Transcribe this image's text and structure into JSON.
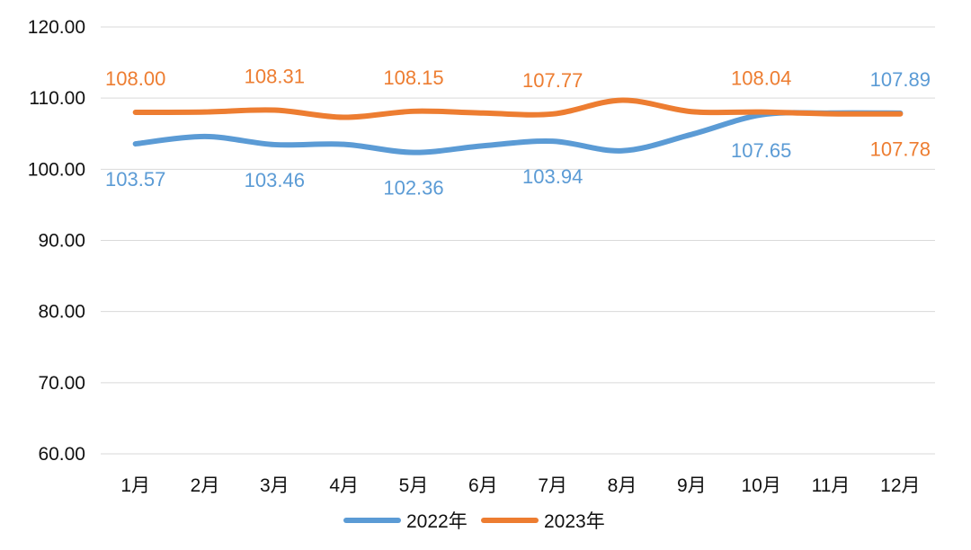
{
  "chart_data": {
    "type": "line",
    "categories": [
      "1月",
      "2月",
      "3月",
      "4月",
      "5月",
      "6月",
      "7月",
      "8月",
      "9月",
      "10月",
      "11月",
      "12月"
    ],
    "series": [
      {
        "name": "2022年",
        "color": "#5B9BD5",
        "values": [
          103.57,
          104.6,
          103.46,
          103.5,
          102.36,
          103.3,
          103.94,
          102.6,
          104.9,
          107.65,
          107.9,
          107.89
        ],
        "labels": [
          {
            "index": 0,
            "text": "103.57",
            "pos": "below"
          },
          {
            "index": 2,
            "text": "103.46",
            "pos": "below"
          },
          {
            "index": 4,
            "text": "102.36",
            "pos": "below"
          },
          {
            "index": 6,
            "text": "103.94",
            "pos": "below"
          },
          {
            "index": 9,
            "text": "107.65",
            "pos": "below"
          },
          {
            "index": 11,
            "text": "107.89",
            "pos": "above"
          }
        ]
      },
      {
        "name": "2023年",
        "color": "#ED7D31",
        "values": [
          108.0,
          108.05,
          108.31,
          107.3,
          108.15,
          107.9,
          107.77,
          109.7,
          108.1,
          108.04,
          107.8,
          107.78
        ],
        "labels": [
          {
            "index": 0,
            "text": "108.00",
            "pos": "above"
          },
          {
            "index": 2,
            "text": "108.31",
            "pos": "above"
          },
          {
            "index": 4,
            "text": "108.15",
            "pos": "above"
          },
          {
            "index": 6,
            "text": "107.77",
            "pos": "above"
          },
          {
            "index": 9,
            "text": "108.04",
            "pos": "above"
          },
          {
            "index": 11,
            "text": "107.78",
            "pos": "below"
          }
        ]
      }
    ],
    "ylim": [
      60,
      120
    ],
    "yticks": [
      "60.00",
      "70.00",
      "80.00",
      "90.00",
      "100.00",
      "110.00",
      "120.00"
    ],
    "grid": true,
    "legend": "bottom",
    "title": "",
    "xlabel": "",
    "ylabel": ""
  }
}
